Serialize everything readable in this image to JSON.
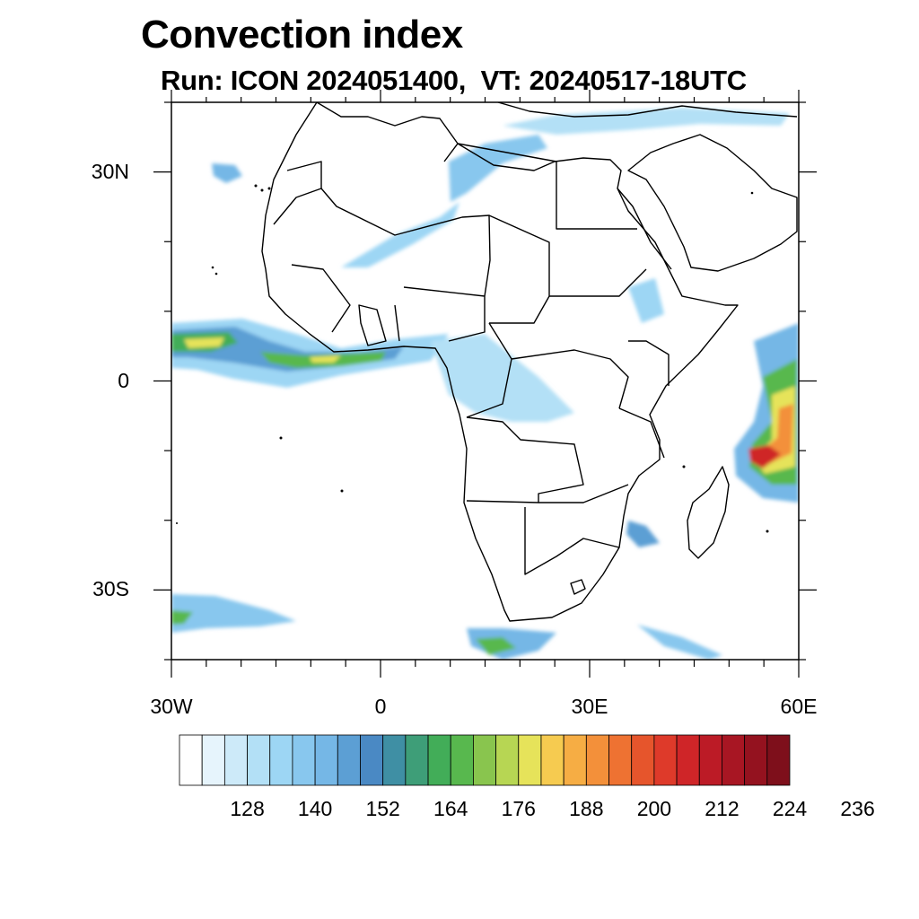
{
  "title": "Convection index",
  "subtitle": "Run: ICON 2024051400,  VT: 20240517-18UTC",
  "map": {
    "lon_range": [
      -30,
      60
    ],
    "lat_range": [
      -40,
      40
    ],
    "y_ticks": [
      {
        "lat": 30,
        "label": "30N"
      },
      {
        "lat": 0,
        "label": "0"
      },
      {
        "lat": -30,
        "label": "30S"
      }
    ],
    "x_ticks": [
      {
        "lon": -30,
        "label": "30W"
      },
      {
        "lon": 0,
        "label": "0"
      },
      {
        "lon": 30,
        "label": "30E"
      },
      {
        "lon": 60,
        "label": "60E"
      }
    ]
  },
  "colorbar": {
    "labels": [
      "128",
      "140",
      "152",
      "164",
      "176",
      "188",
      "200",
      "212",
      "224",
      "236"
    ],
    "colors": [
      "#ffffff",
      "#e6f4fc",
      "#cdeaf9",
      "#b3e0f6",
      "#9dd6f4",
      "#88c7ee",
      "#75b7e6",
      "#5c9fd4",
      "#4a89c4",
      "#3f8fa4",
      "#3e9e78",
      "#42ad58",
      "#58b84e",
      "#89c54e",
      "#b7d653",
      "#e6e35a",
      "#f6cb50",
      "#f6ad44",
      "#f3903a",
      "#ee7232",
      "#e6552c",
      "#de3a2a",
      "#cf2528",
      "#bc1b26",
      "#a81623",
      "#94121f",
      "#7e0f1b"
    ]
  }
}
